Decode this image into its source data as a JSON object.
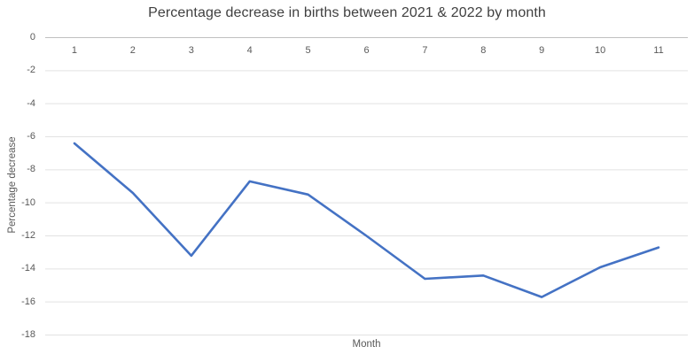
{
  "chart_data": {
    "type": "line",
    "title": "Percentage decrease in births between 2021 & 2022 by month",
    "xlabel": "Month",
    "ylabel": "Percentage decrease",
    "categories": [
      "1",
      "2",
      "3",
      "4",
      "5",
      "6",
      "7",
      "8",
      "9",
      "10",
      "11"
    ],
    "series": [
      {
        "name": "Percentage decrease",
        "values": [
          -6.4,
          -9.4,
          -13.2,
          -8.7,
          -9.5,
          -12,
          -14.6,
          -14.4,
          -15.7,
          -13.9,
          -12.7
        ]
      }
    ],
    "ylim": [
      -18,
      0
    ],
    "y_ticks": [
      0,
      -2,
      -4,
      -6,
      -8,
      -10,
      -12,
      -14,
      -16,
      -18
    ],
    "grid": true,
    "legend": "none",
    "colors": {
      "line": "#4472C4",
      "gridline": "#E2E2E2",
      "axis_line": "#C0C0C0",
      "tick_label": "#595959",
      "axis_title": "#595959",
      "title": "#404040",
      "background": "#FFFFFF"
    }
  }
}
